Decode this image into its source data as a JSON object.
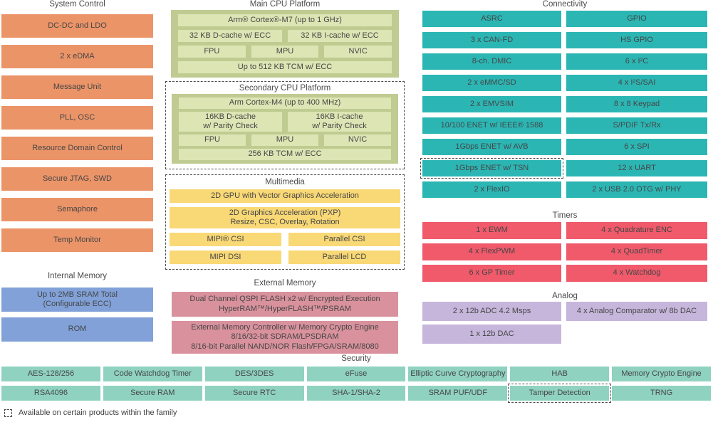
{
  "colors": {
    "orange": "#EB9468",
    "blue": "#81A1D8",
    "green_container": "#BFCB90",
    "green_row": "#DDE5B4",
    "yellow": "#F9D876",
    "pink": "#D9929D",
    "teal": "#2BB6B4",
    "security_teal": "#8FD2C0",
    "red": "#F05A6B",
    "purple": "#C6B6DC",
    "text": "#464646"
  },
  "system_control": {
    "title": "System Control",
    "items": [
      "DC-DC and LDO",
      "2 x eDMA",
      "Message Unit",
      "PLL, OSC",
      "Resource Domain Control",
      "Secure JTAG, SWD",
      "Semaphore",
      "Temp Monitor"
    ]
  },
  "internal_memory": {
    "title": "Internal Memory",
    "items": [
      "Up to 2MB SRAM Total\n(Configurable ECC)",
      "ROM"
    ]
  },
  "main_cpu": {
    "title": "Main CPU Platform",
    "core": "Arm® Cortex®-M7 (up to 1 GHz)",
    "dcache": "32 KB D-cache w/ ECC",
    "icache": "32 KB I-cache w/ ECC",
    "units": [
      "FPU",
      "MPU",
      "NVIC"
    ],
    "tcm": "Up to 512 KB TCM w/ ECC"
  },
  "secondary_cpu": {
    "title": "Secondary CPU Platform",
    "core": "Arm Cortex-M4 (up to 400 MHz)",
    "dcache": "16KB D-cache\nw/ Parity Check",
    "icache": "16KB I-cache\nw/ Parity Check",
    "units": [
      "FPU",
      "MPU",
      "NVIC"
    ],
    "tcm": "256 KB TCM w/ ECC"
  },
  "multimedia": {
    "title": "Multimedia",
    "gpu": "2D GPU with Vector Graphics Acceleration",
    "pxp": "2D Graphics Acceleration (PXP)\nResize, CSC, Overlay, Rotation",
    "mipi_csi": "MIPI® CSI",
    "parallel_csi": "Parallel CSI",
    "mipi_dsi": "MIPI DSI",
    "parallel_lcd": "Parallel LCD"
  },
  "external_memory": {
    "title": "External Memory",
    "items": [
      "Dual Channel QSPI FLASH x2 w/ Encrypted Execution\nHyperRAM™/HyperFLASH™/PSRAM",
      "External Memory Controller w/ Memory Crypto Engine\n8/16/32-bit SDRAM/LPSDRAM\n8/16-bit Parallel NAND/NOR Flash/FPGA/SRAM/8080"
    ]
  },
  "connectivity": {
    "title": "Connectivity",
    "left": [
      "ASRC",
      "3 x CAN-FD",
      "8-ch. DMIC",
      "2 x eMMC/SD",
      "2 x EMVSIM",
      "10/100 ENET w/ IEEE® 1588",
      "1Gbps ENET w/ AVB",
      "1Gbps ENET w/ TSN",
      "2 x FlexIO"
    ],
    "right": [
      "GPIO",
      "HS GPIO",
      "6 x I²C",
      "4 x I²S/SAI",
      "8 x 8 Keypad",
      "S/PDIF Tx/Rx",
      "6 x SPI",
      "12 x UART",
      "2 x USB 2.0 OTG w/ PHY"
    ]
  },
  "timers": {
    "title": "Timers",
    "left": [
      "1 x EWM",
      "4 x FlexPWM",
      "6 x GP Timer"
    ],
    "right": [
      "4 x Quadrature ENC",
      "4 x QuadTimer",
      "4 x Watchdog"
    ]
  },
  "analog": {
    "title": "Analog",
    "left": [
      "2 x 12b ADC 4.2 Msps",
      "1 x 12b DAC"
    ],
    "right": [
      "4 x Analog Comparator w/ 8b DAC"
    ]
  },
  "security": {
    "title": "Security",
    "row1": [
      "AES-128/256",
      "Code Watchdog Timer",
      "DES/3DES",
      "eFuse",
      "Elliptic Curve Cryptography",
      "HAB",
      "Memory Crypto Engine"
    ],
    "row2": [
      "RSA4096",
      "Secure RAM",
      "Secure RTC",
      "SHA-1/SHA-2",
      "SRAM PUF/UDF",
      "Tamper Detection",
      "TRNG"
    ]
  },
  "footnote": {
    "text": "Available on certain products within the family"
  }
}
